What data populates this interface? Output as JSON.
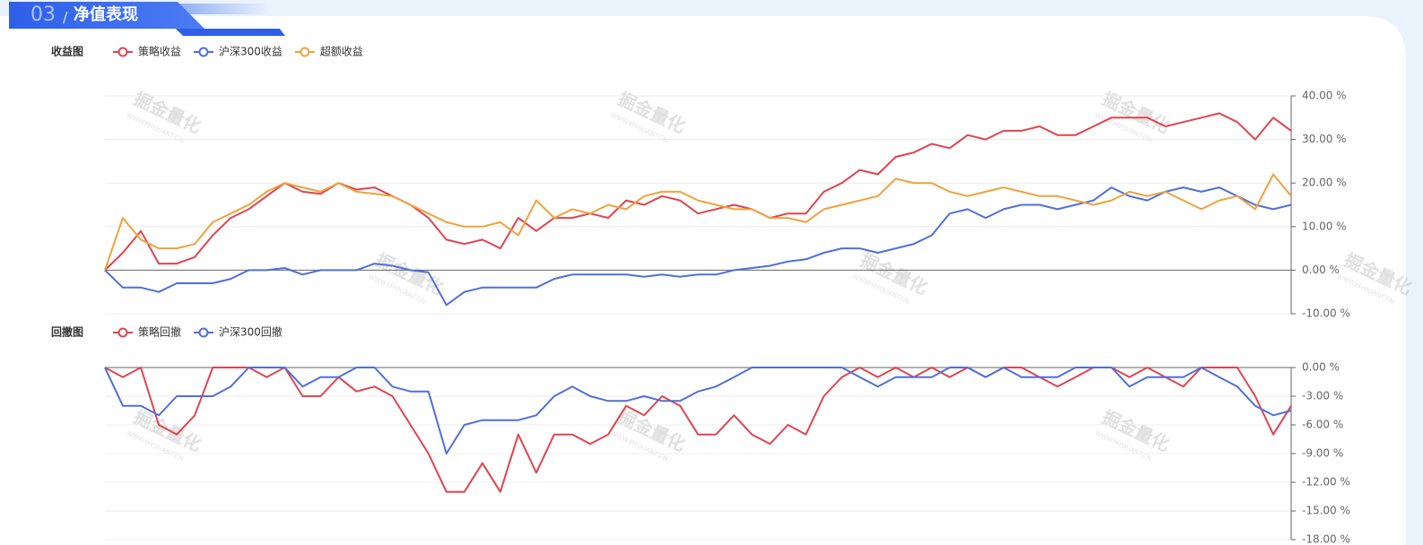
{
  "header": {
    "section_number": "03",
    "separator": "/",
    "section_title": "净值表现"
  },
  "watermark": {
    "text": "掘金量化",
    "url": "WWW.MYQUANT.CN"
  },
  "chart_data": [
    {
      "type": "line",
      "title": "收益图",
      "ylim": [
        -10,
        40
      ],
      "yticks": [
        {
          "value": 40,
          "label": "40.00 %"
        },
        {
          "value": 30,
          "label": "30.00 %"
        },
        {
          "value": 20,
          "label": "20.00 %"
        },
        {
          "value": 10,
          "label": "10.00 %"
        },
        {
          "value": 0,
          "label": "0.00 %"
        },
        {
          "value": -10,
          "label": "-10.00 %"
        }
      ],
      "grid": true,
      "series": [
        {
          "name": "策略收益",
          "color": "#e2434f",
          "values": [
            0,
            4,
            9,
            1.5,
            1.5,
            3,
            8,
            12,
            14,
            17,
            20,
            18,
            17.5,
            20,
            18.5,
            19,
            17,
            15,
            12,
            7,
            6,
            7,
            5,
            12,
            9,
            12,
            12,
            13,
            12,
            16,
            15,
            17,
            16,
            13,
            14,
            15,
            14,
            12,
            13,
            13,
            18,
            20,
            23,
            22,
            26,
            27,
            29,
            28,
            31,
            30,
            32,
            32,
            33,
            31,
            31,
            33,
            35,
            35,
            35,
            33,
            34,
            35,
            36,
            34,
            30,
            35,
            32
          ]
        },
        {
          "name": "沪深300收益",
          "color": "#4f6fdc",
          "values": [
            0,
            -4,
            -4,
            -5,
            -3,
            -3,
            -3,
            -2,
            0,
            0,
            0.5,
            -1,
            0,
            0,
            0,
            1.5,
            1,
            0,
            -0.5,
            -8,
            -5,
            -4,
            -4,
            -4,
            -4,
            -2,
            -1,
            -1,
            -1,
            -1,
            -1.5,
            -1,
            -1.5,
            -1,
            -1,
            0,
            0.5,
            1,
            2,
            2.5,
            4,
            5,
            5,
            4,
            5,
            6,
            8,
            13,
            14,
            12,
            14,
            15,
            15,
            14,
            15,
            16,
            19,
            17,
            16,
            18,
            19,
            18,
            19,
            17,
            15,
            14,
            15
          ]
        },
        {
          "name": "超额收益",
          "color": "#f0a23a",
          "values": [
            0,
            12,
            7,
            5,
            5,
            6,
            11,
            13,
            15,
            18,
            20,
            19,
            18,
            20,
            18,
            17.5,
            17,
            15,
            13,
            11,
            10,
            10,
            11,
            8,
            16,
            12,
            14,
            13,
            15,
            14,
            17,
            18,
            18,
            16,
            15,
            14,
            14,
            12,
            12,
            11,
            14,
            15,
            16,
            17,
            21,
            20,
            20,
            18,
            17,
            18,
            19,
            18,
            17,
            17,
            16,
            15,
            16,
            18,
            17,
            18,
            16,
            14,
            16,
            17,
            14,
            22,
            17
          ]
        }
      ]
    },
    {
      "type": "line",
      "title": "回撤图",
      "ylim": [
        -18,
        0
      ],
      "yticks": [
        {
          "value": 0,
          "label": "0.00 %"
        },
        {
          "value": -3,
          "label": "-3.00 %"
        },
        {
          "value": -6,
          "label": "-6.00 %"
        },
        {
          "value": -9,
          "label": "-9.00 %"
        },
        {
          "value": -12,
          "label": "-12.00 %"
        },
        {
          "value": -15,
          "label": "-15.00 %"
        },
        {
          "value": -18,
          "label": "-18.00 %"
        }
      ],
      "grid": true,
      "series": [
        {
          "name": "策略回撤",
          "color": "#e2434f",
          "values": [
            0,
            -1,
            0,
            -6,
            -7,
            -5,
            0,
            0,
            0,
            -1,
            0,
            -3,
            -3,
            -1,
            -2.5,
            -2,
            -3,
            -6,
            -9,
            -13,
            -13,
            -10,
            -13,
            -7,
            -11,
            -7,
            -7,
            -8,
            -7,
            -4,
            -5,
            -3,
            -4,
            -7,
            -7,
            -5,
            -7,
            -8,
            -6,
            -7,
            -3,
            -1,
            0,
            -1,
            0,
            -1,
            0,
            -1,
            0,
            -1,
            0,
            0,
            -1,
            -2,
            -1,
            0,
            0,
            -1,
            0,
            -1,
            -2,
            0,
            0,
            0,
            -3,
            -7,
            -4
          ]
        },
        {
          "name": "沪深300回撤",
          "color": "#4f6fdc",
          "values": [
            0,
            -4,
            -4,
            -5,
            -3,
            -3,
            -3,
            -2,
            0,
            0,
            0,
            -2,
            -1,
            -1,
            0,
            0,
            -2,
            -2.5,
            -2.5,
            -9,
            -6,
            -5.5,
            -5.5,
            -5.5,
            -5,
            -3,
            -2,
            -3,
            -3.5,
            -3.5,
            -3,
            -3.5,
            -3.5,
            -2.5,
            -2,
            -1,
            0,
            0,
            0,
            0,
            0,
            0,
            -1,
            -2,
            -1,
            -1,
            -1,
            0,
            0,
            -1,
            0,
            -1,
            -1,
            -1,
            0,
            0,
            0,
            -2,
            -1,
            -1,
            -1,
            0,
            -1,
            -2,
            -4,
            -5,
            -4.5
          ]
        }
      ]
    }
  ]
}
